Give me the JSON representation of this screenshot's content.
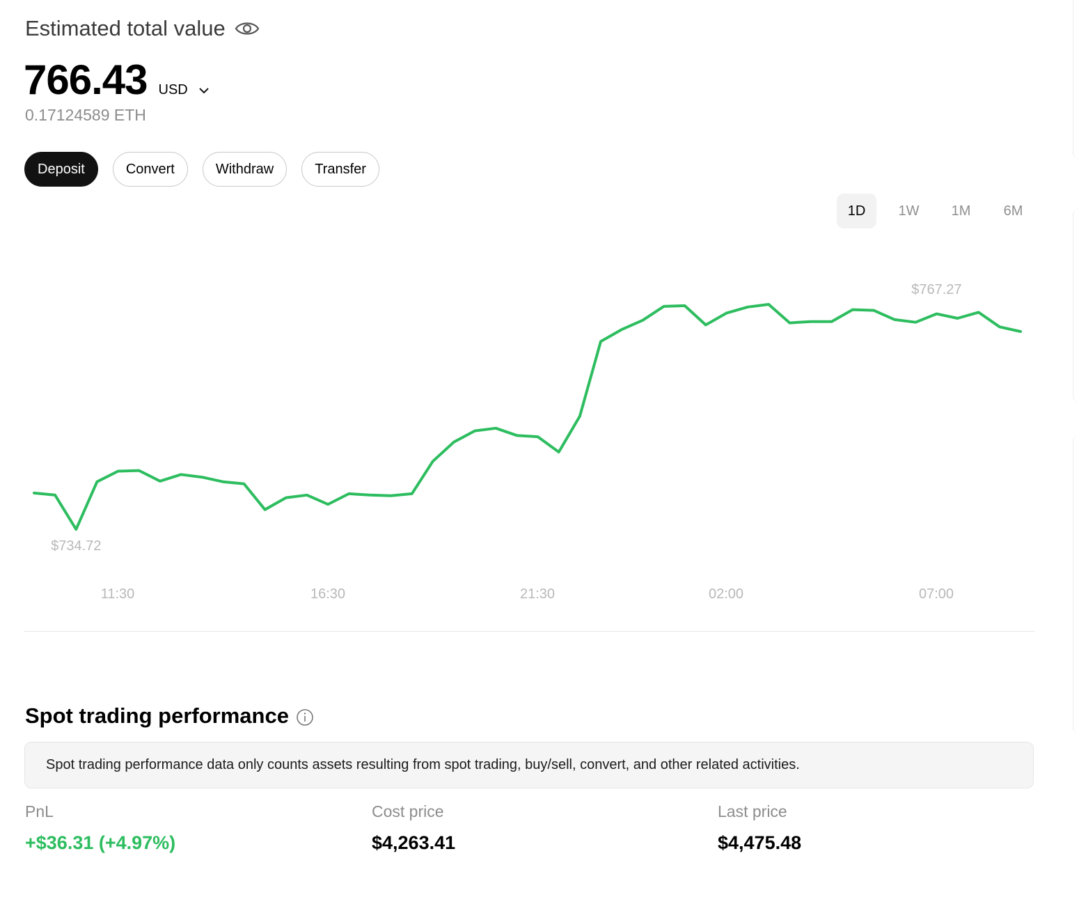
{
  "header": {
    "title": "Estimated total value",
    "eye_icon": "eye-icon"
  },
  "balance": {
    "value": "766.43",
    "currency": "USD",
    "secondary": "0.17124589 ETH"
  },
  "actions": {
    "deposit": "Deposit",
    "convert": "Convert",
    "withdraw": "Withdraw",
    "transfer": "Transfer"
  },
  "range_tabs": {
    "d1": "1D",
    "w1": "1W",
    "m1": "1M",
    "m6": "6M",
    "active": "1D"
  },
  "chart_data": {
    "type": "line",
    "color": "#2dbd5f",
    "ylim": [
      725,
      772
    ],
    "x_ticks": [
      "11:30",
      "16:30",
      "21:30",
      "02:00",
      "07:00"
    ],
    "high_label": "$767.27",
    "low_label": "$734.72",
    "values": [
      740.2,
      739.9,
      734.72,
      741.9,
      743.5,
      743.6,
      742.0,
      743.0,
      742.6,
      741.9,
      741.6,
      737.7,
      739.5,
      739.9,
      738.5,
      740.1,
      739.9,
      739.8,
      740.1,
      745.0,
      747.9,
      749.6,
      750.0,
      748.9,
      748.7,
      746.4,
      751.8,
      763.1,
      764.9,
      766.3,
      768.4,
      768.5,
      765.6,
      767.4,
      768.3,
      768.7,
      765.9,
      766.1,
      766.1,
      767.9,
      767.8,
      766.4,
      766.0,
      767.27,
      766.6,
      767.5,
      765.3,
      764.6
    ]
  },
  "spot": {
    "title": "Spot trading performance",
    "info_icon": "info-icon",
    "notice": "Spot trading performance data only counts assets resulting from spot trading, buy/sell, convert, and other related activities.",
    "pnl_label": "PnL",
    "pnl_value": "+$36.31 (+4.97%)",
    "cost_label": "Cost price",
    "cost_value": "$4,263.41",
    "last_label": "Last price",
    "last_value": "$4,475.48"
  },
  "colors": {
    "positive": "#2dbd5f",
    "primary_button": "#121212",
    "muted_text": "#8c8c8c"
  }
}
